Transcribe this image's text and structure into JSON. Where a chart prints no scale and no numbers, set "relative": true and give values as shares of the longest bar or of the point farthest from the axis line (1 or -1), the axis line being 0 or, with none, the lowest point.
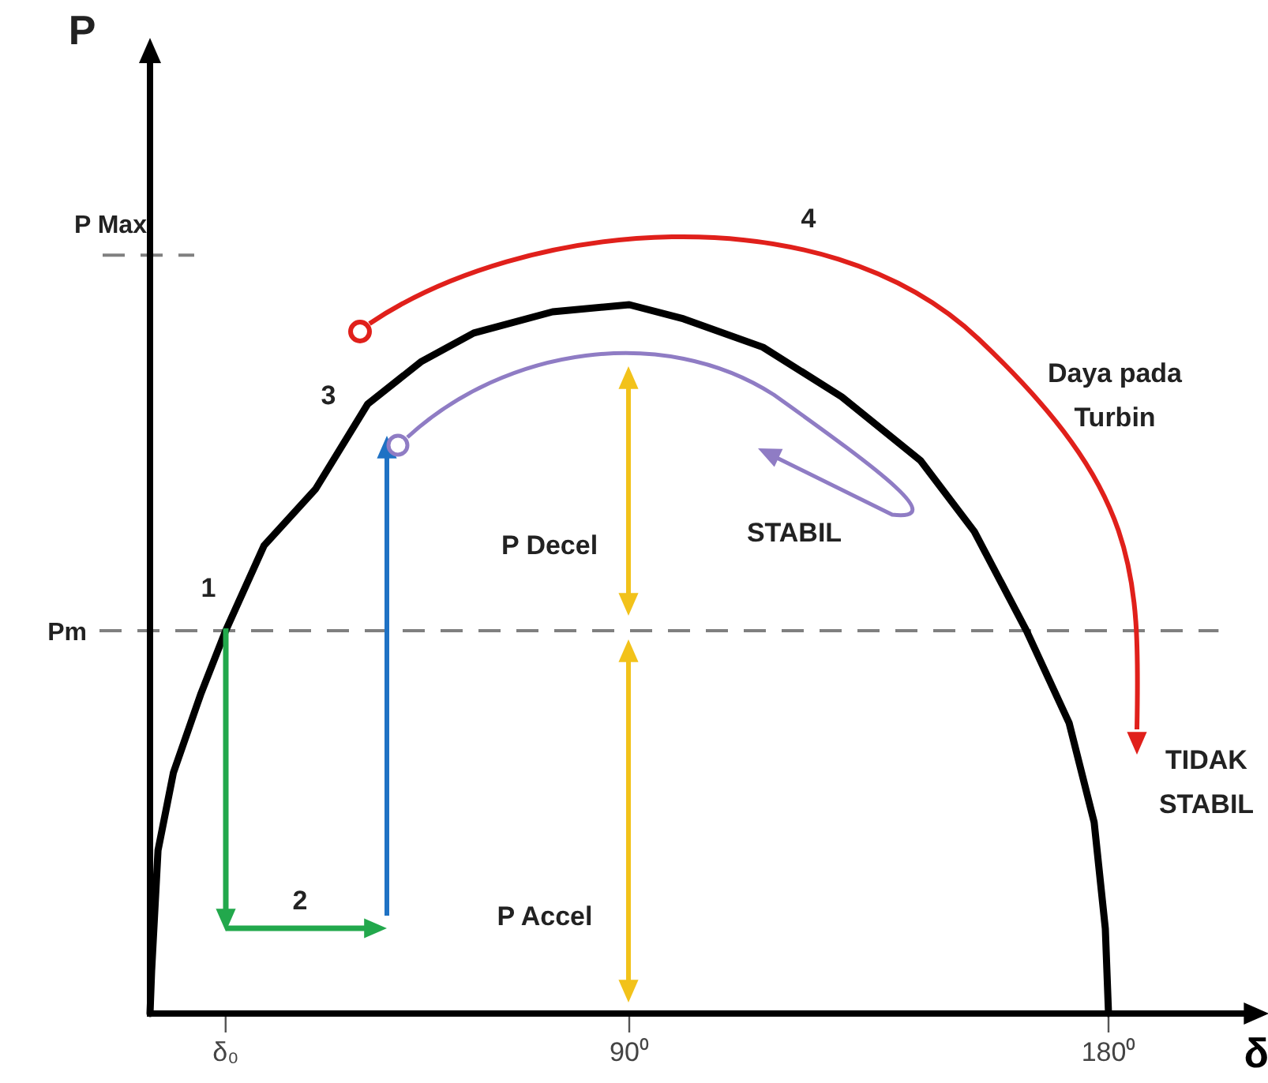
{
  "chart_data": {
    "type": "line",
    "xlabel": "δ",
    "relative": true,
    "x": [
      0,
      0.3,
      1.5,
      4.4,
      9.5,
      14.2,
      21.4,
      31.1,
      40.9,
      51.0,
      60.8,
      75.6,
      90,
      100.2,
      115.1,
      129.9,
      144.7,
      154.8,
      164.6,
      172.6,
      177.3,
      179.4,
      180
    ],
    "series": [
      {
        "color": "#000000",
        "values": [
          0,
          0.06,
          0.23,
          0.34,
          0.45,
          0.54,
          0.66,
          0.74,
          0.86,
          0.92,
          0.96,
          0.99,
          1,
          0.98,
          0.94,
          0.87,
          0.78,
          0.68,
          0.54,
          0.41,
          0.27,
          0.12,
          0
        ]
      }
    ],
    "xlim": [
      0,
      206
    ],
    "xticks": [
      {
        "value": 14.2,
        "label": "δ₀"
      },
      {
        "value": 90,
        "label": "90⁰"
      },
      {
        "value": 180,
        "label": "180⁰"
      }
    ],
    "ref_lines": [
      {
        "axis": "y",
        "value": 0.54,
        "label": "Pm",
        "color": "#808080",
        "line_style": "dashed"
      },
      {
        "axis": "y",
        "value": 1.07,
        "label": "P Max",
        "color": "#808080",
        "line_style": "dashed"
      }
    ],
    "annotations": [
      "1",
      "2",
      "3",
      "4",
      "Daya pada Turbin",
      "STABIL",
      "TIDAK STABIL",
      "P Decel",
      "P Accel",
      "P"
    ]
  }
}
